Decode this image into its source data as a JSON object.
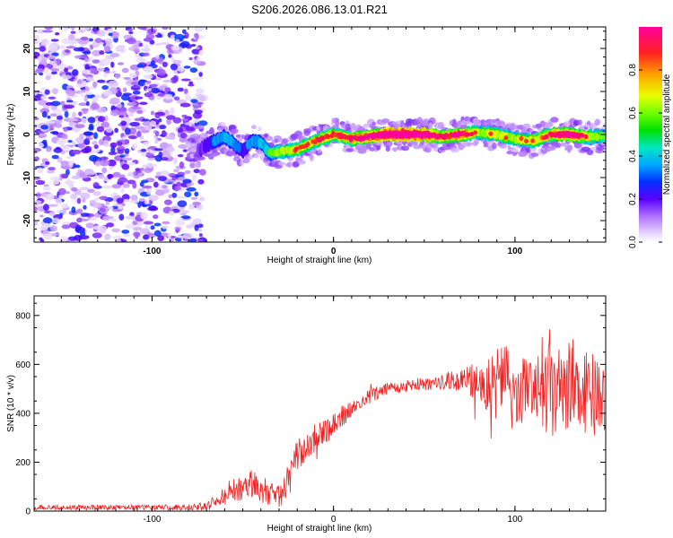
{
  "title": "S206.2026.086.13.01.R21",
  "chart_data": [
    {
      "type": "heatmap",
      "title": "S206.2026.086.13.01.R21",
      "xlabel": "Height of straight line (km)",
      "ylabel": "Frequency (Hz)",
      "xlim": [
        -165,
        150
      ],
      "ylim": [
        -25,
        25
      ],
      "x_ticks": [
        -100,
        0,
        100
      ],
      "x_tick_labels": [
        "-100",
        "0",
        "100"
      ],
      "y_ticks": [
        -20,
        -10,
        0,
        10,
        20
      ],
      "y_tick_labels": [
        "-20",
        "-10",
        "0",
        "10",
        "20"
      ],
      "colorbar": {
        "label": "Normalized spectral amplitude",
        "range": [
          0,
          1
        ],
        "ticks": [
          0.0,
          0.2,
          0.4,
          0.6,
          0.8
        ],
        "tick_labels": [
          "0.0",
          "0.2",
          "0.4",
          "0.6",
          "0.8"
        ],
        "colors": [
          "#e6d6ff",
          "#c38bff",
          "#7a00ff",
          "#2a00ff",
          "#0050ff",
          "#00c8ff",
          "#00e6a0",
          "#00e000",
          "#9aff00",
          "#ffff00",
          "#ffa000",
          "#ff3000",
          "#ff0060",
          "#ff00a0"
        ]
      },
      "noise_region_x": [
        -165,
        -78
      ],
      "ridge": {
        "x": [
          -80,
          -70,
          -60,
          -50,
          -45,
          -40,
          -35,
          -30,
          -20,
          -10,
          0,
          10,
          20,
          30,
          40,
          50,
          60,
          70,
          80,
          90,
          100,
          110,
          120,
          130,
          140,
          150
        ],
        "freq": [
          -5.5,
          -2.5,
          -0.5,
          -4,
          -1.5,
          -1.8,
          -4.5,
          -4,
          -3.5,
          -1.5,
          0,
          -1,
          -0.5,
          0,
          0,
          0,
          -0.5,
          0,
          0.5,
          0,
          -1,
          -1.5,
          0,
          0,
          -0.5,
          -0.5
        ],
        "amplitude": [
          0.15,
          0.3,
          0.4,
          0.3,
          0.35,
          0.4,
          0.45,
          0.55,
          0.6,
          0.65,
          0.65,
          0.7,
          0.8,
          0.95,
          1.0,
          0.9,
          0.7,
          0.8,
          0.55,
          0.6,
          0.55,
          0.6,
          0.7,
          0.85,
          0.6,
          0.45
        ]
      }
    },
    {
      "type": "line",
      "xlabel": "Height of straight line (km)",
      "ylabel": "SNR (10 * v/v)",
      "xlim": [
        -165,
        150
      ],
      "ylim": [
        0,
        880
      ],
      "x_ticks": [
        -100,
        0,
        100
      ],
      "x_tick_labels": [
        "-100",
        "0",
        "100"
      ],
      "y_ticks": [
        0,
        200,
        400,
        600,
        800
      ],
      "y_tick_labels": [
        "0",
        "200",
        "400",
        "600",
        "800"
      ],
      "series": [
        {
          "name": "SNR",
          "color": "#ee2222",
          "envelope_x": [
            -165,
            -120,
            -80,
            -70,
            -65,
            -60,
            -55,
            -50,
            -45,
            -40,
            -35,
            -30,
            -25,
            -20,
            -15,
            -10,
            -5,
            0,
            5,
            10,
            20,
            30,
            40,
            50,
            60,
            70,
            80,
            85,
            90,
            95,
            100,
            110,
            115,
            120,
            125,
            130,
            140,
            150
          ],
          "envelope_mean": [
            15,
            15,
            15,
            20,
            35,
            60,
            95,
            90,
            110,
            90,
            70,
            70,
            120,
            230,
            250,
            300,
            320,
            360,
            390,
            410,
            470,
            500,
            510,
            520,
            530,
            535,
            530,
            520,
            520,
            500,
            470,
            520,
            550,
            470,
            470,
            520,
            480,
            460
          ],
          "envelope_spread": [
            10,
            10,
            12,
            18,
            30,
            40,
            55,
            55,
            60,
            60,
            60,
            60,
            70,
            70,
            60,
            60,
            60,
            50,
            45,
            35,
            30,
            25,
            25,
            30,
            35,
            50,
            80,
            120,
            160,
            180,
            140,
            150,
            200,
            200,
            200,
            200,
            180,
            170
          ]
        }
      ]
    }
  ]
}
